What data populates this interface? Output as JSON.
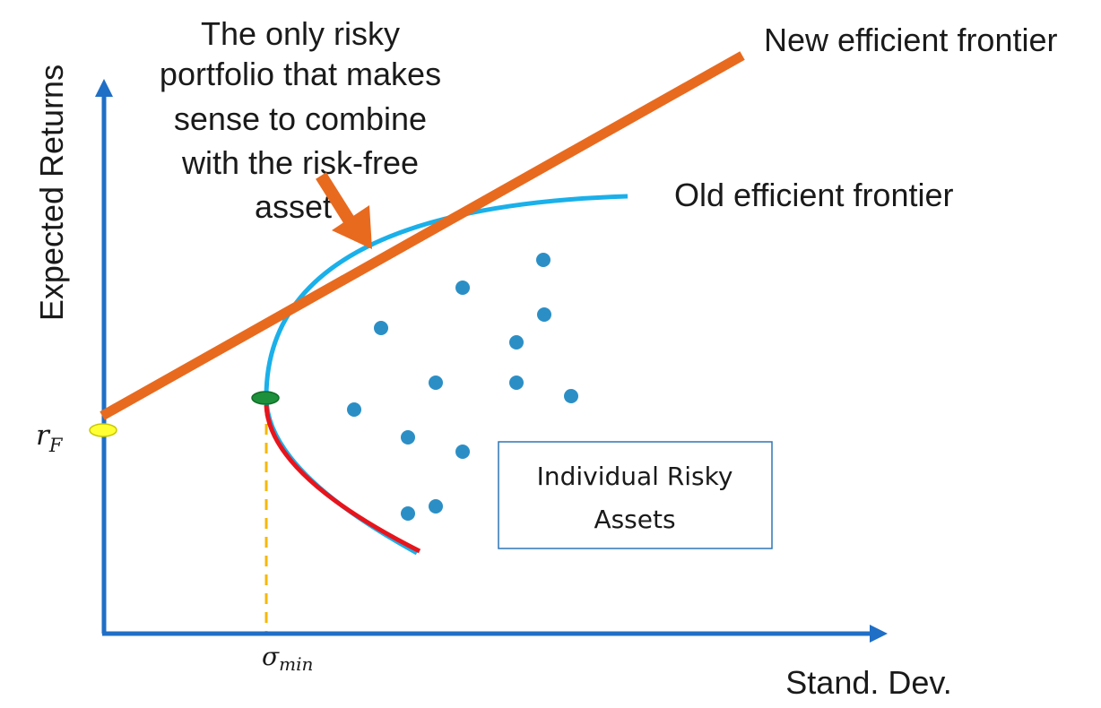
{
  "axes": {
    "y_label": "Expected Returns",
    "x_label": "Stand. Dev.",
    "color": "#1f6fc6"
  },
  "labels": {
    "rf_symbol": "r",
    "rf_subscript": "F",
    "sigma_symbol": "σ",
    "sigma_subscript": "min",
    "new_frontier": "New efficient frontier",
    "old_frontier": "Old efficient frontier",
    "annotation_lines": [
      "The only risky",
      "portfolio that makes",
      "sense to combine",
      "with the risk-free",
      "asset"
    ],
    "box_lines": [
      "Individual Risky",
      "Assets"
    ]
  },
  "colors": {
    "capital_allocation_line": "#e86a1f",
    "efficient_frontier": "#1ab0ea",
    "inefficient_segment": "#e8141c",
    "asset_dots": "#2b8fc6",
    "risk_free_marker": "#ffff33",
    "min_variance_marker": "#1e8f3a",
    "sigma_guide": "#f5b800",
    "box_border": "#2e75b6",
    "arrow": "#e86a1f"
  },
  "icons": {
    "annotation_arrow": "arrow-down-right-icon",
    "axis_arrow": "arrowhead-icon"
  }
}
